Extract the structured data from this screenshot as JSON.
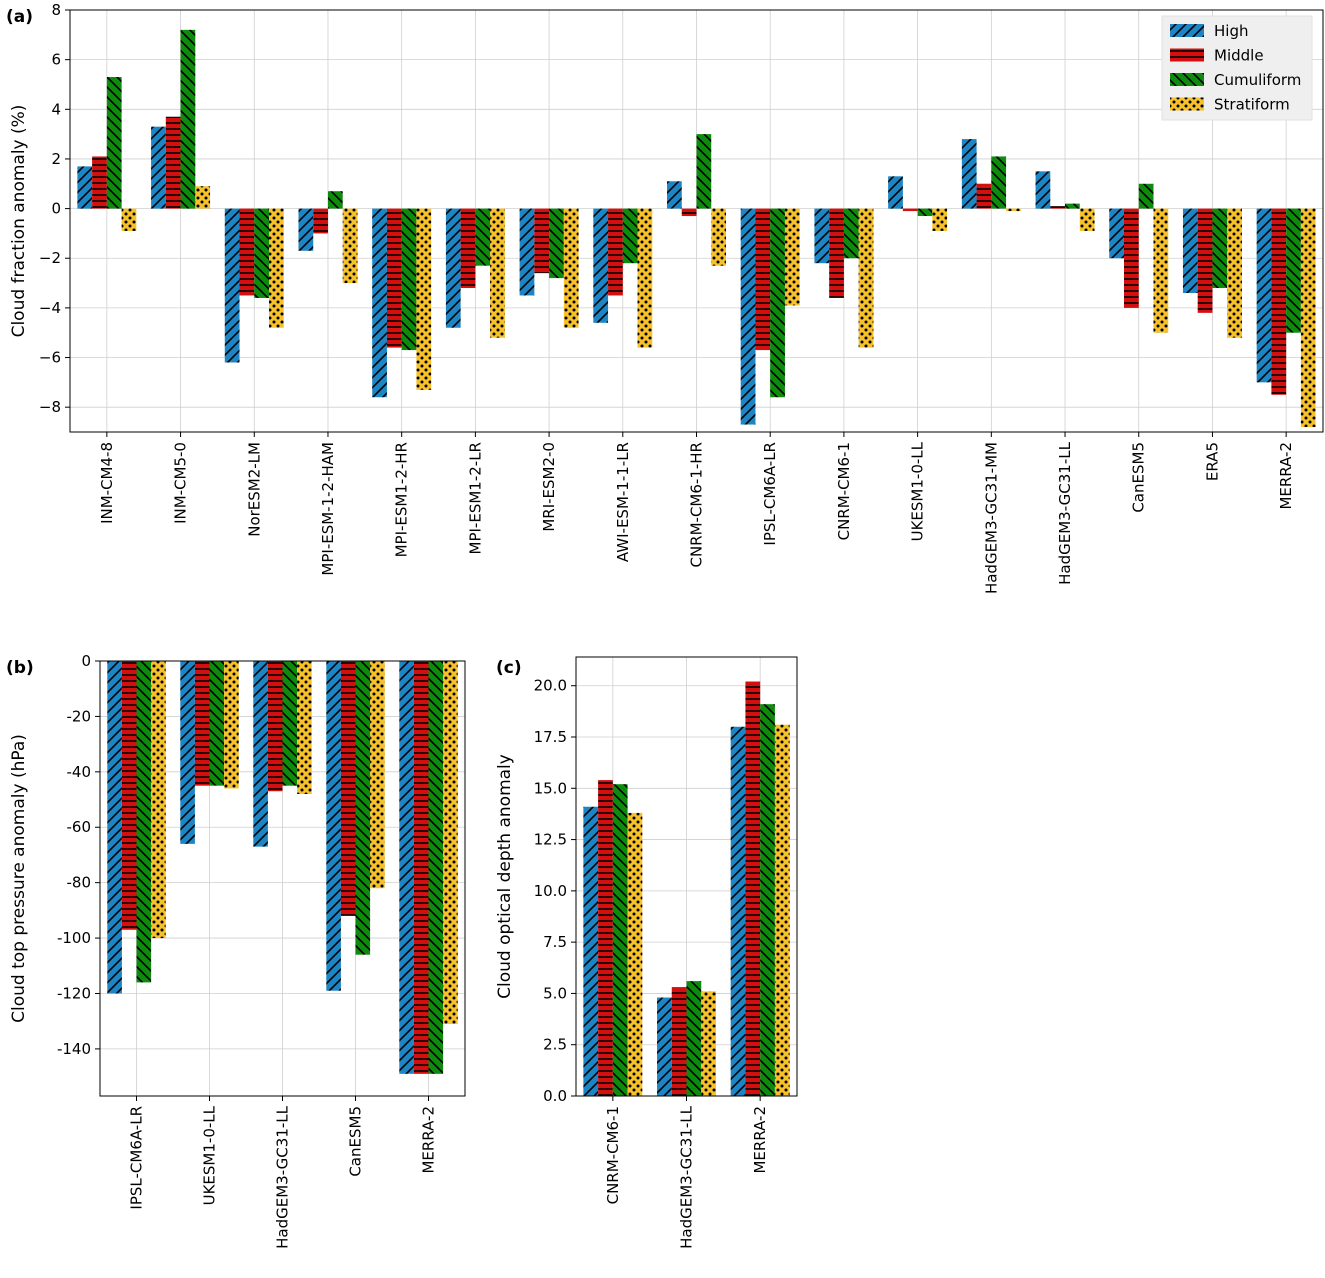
{
  "legend": {
    "items": [
      {
        "label": "High",
        "color": "#1a86c8",
        "hatch": "diagonal-forward"
      },
      {
        "label": "Middle",
        "color": "#d40f0f",
        "hatch": "horizontal"
      },
      {
        "label": "Cumuliform",
        "color": "#0f8a0f",
        "hatch": "diagonal-back"
      },
      {
        "label": "Stratiform",
        "color": "#f6c12a",
        "hatch": "dots"
      }
    ]
  },
  "chart_data": [
    {
      "panel": "(a)",
      "type": "bar",
      "ylabel": "Cloud fraction anomaly (%)",
      "ylim": [
        -9.0,
        8.0
      ],
      "yticks": [
        -8,
        -6,
        -4,
        -2,
        0,
        2,
        4,
        6,
        8
      ],
      "grid": true,
      "legend_position": "top-right",
      "categories": [
        "INM-CM4-8",
        "INM-CM5-0",
        "NorESM2-LM",
        "MPI-ESM-1-2-HAM",
        "MPI-ESM1-2-HR",
        "MPI-ESM1-2-LR",
        "MRI-ESM2-0",
        "AWI-ESM-1-1-LR",
        "CNRM-CM6-1-HR",
        "IPSL-CM6A-LR",
        "CNRM-CM6-1",
        "UKESM1-0-LL",
        "HadGEM3-GC31-MM",
        "HadGEM3-GC31-LL",
        "CanESM5",
        "ERA5",
        "MERRA-2"
      ],
      "series": [
        {
          "name": "High",
          "values": [
            1.7,
            3.3,
            -6.2,
            -1.7,
            -7.6,
            -4.8,
            -3.5,
            -4.6,
            1.1,
            -8.7,
            -2.2,
            1.3,
            2.8,
            1.5,
            -2.0,
            -3.4,
            -7.0
          ]
        },
        {
          "name": "Middle",
          "values": [
            2.1,
            3.7,
            -3.5,
            -1.0,
            -5.6,
            -3.2,
            -2.6,
            -3.5,
            -0.3,
            -5.7,
            -3.6,
            -0.1,
            1.0,
            0.1,
            -4.0,
            -4.2,
            -7.5
          ]
        },
        {
          "name": "Cumuliform",
          "values": [
            5.3,
            7.2,
            -3.6,
            0.7,
            -5.7,
            -2.3,
            -2.8,
            -2.2,
            3.0,
            -7.6,
            -2.0,
            -0.3,
            2.1,
            0.2,
            1.0,
            -3.2,
            -5.0
          ]
        },
        {
          "name": "Stratiform",
          "values": [
            -0.9,
            0.9,
            -4.8,
            -3.0,
            -7.3,
            -5.2,
            -4.8,
            -5.6,
            -2.3,
            -3.9,
            -5.6,
            -0.9,
            -0.1,
            -0.9,
            -5.0,
            -5.2,
            -8.8
          ]
        }
      ]
    },
    {
      "panel": "(b)",
      "type": "bar",
      "ylabel": "Cloud top pressure anomaly (hPa)",
      "ylim": [
        -157.0,
        0.0
      ],
      "yticks": [
        0,
        -20,
        -40,
        -60,
        -80,
        -100,
        -120,
        -140
      ],
      "grid": true,
      "categories": [
        "IPSL-CM6A-LR",
        "UKESM1-0-LL",
        "HadGEM3-GC31-LL",
        "CanESM5",
        "MERRA-2"
      ],
      "series": [
        {
          "name": "High",
          "values": [
            -120,
            -66,
            -67,
            -119,
            -149
          ]
        },
        {
          "name": "Middle",
          "values": [
            -97,
            -45,
            -47,
            -92,
            -149
          ]
        },
        {
          "name": "Cumuliform",
          "values": [
            -116,
            -45,
            -45,
            -106,
            -149
          ]
        },
        {
          "name": "Stratiform",
          "values": [
            -100,
            -46,
            -48,
            -82,
            -131
          ]
        }
      ]
    },
    {
      "panel": "(c)",
      "type": "bar",
      "ylabel": "Cloud optical depth anomaly",
      "ylim": [
        0.0,
        21.4
      ],
      "yticks": [
        0.0,
        2.5,
        5.0,
        7.5,
        10.0,
        12.5,
        15.0,
        17.5,
        20.0
      ],
      "grid": true,
      "categories": [
        "CNRM-CM6-1",
        "HadGEM3-GC31-LL",
        "MERRA-2"
      ],
      "series": [
        {
          "name": "High",
          "values": [
            14.1,
            4.8,
            18.0
          ]
        },
        {
          "name": "Middle",
          "values": [
            15.4,
            5.3,
            20.2
          ]
        },
        {
          "name": "Cumuliform",
          "values": [
            15.2,
            5.6,
            19.1
          ]
        },
        {
          "name": "Stratiform",
          "values": [
            13.8,
            5.1,
            18.1
          ]
        }
      ]
    }
  ]
}
